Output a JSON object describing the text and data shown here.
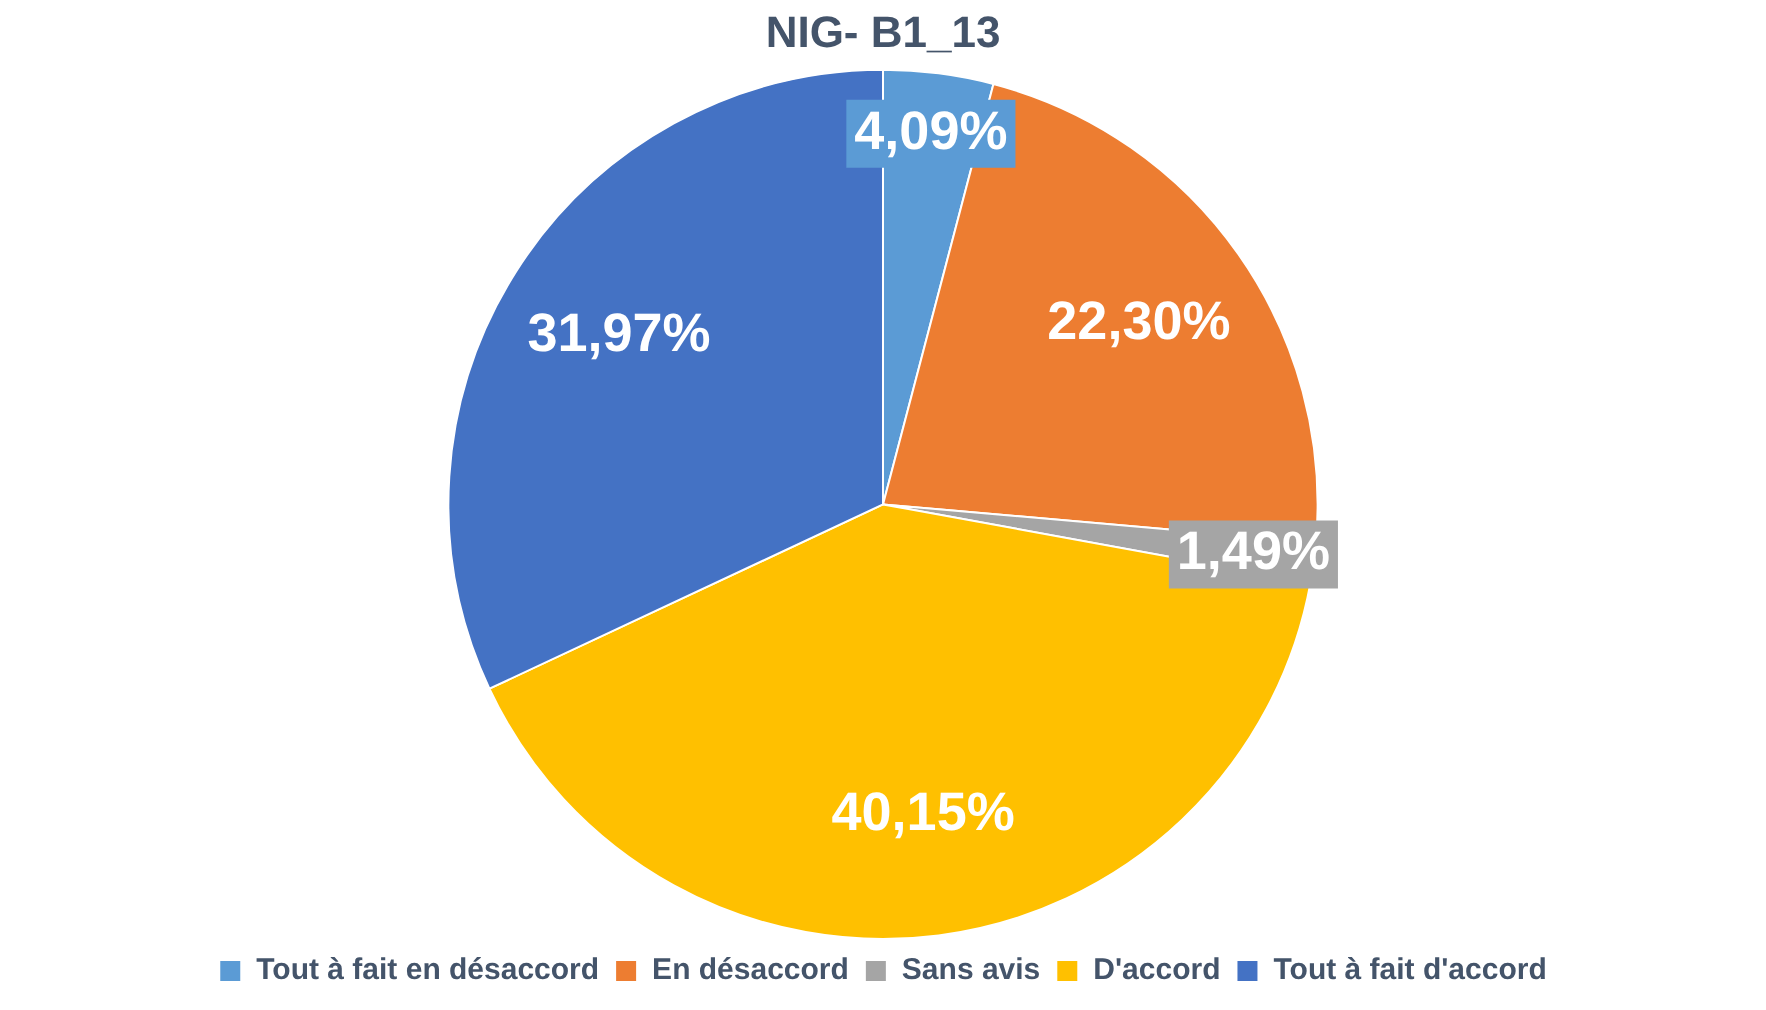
{
  "chart_data": {
    "type": "pie",
    "title": "NIG- B1_13",
    "categories": [
      "Tout à fait en désaccord",
      "En désaccord",
      "Sans avis",
      "D'accord",
      "Tout à fait d'accord"
    ],
    "values": [
      4.09,
      22.3,
      1.49,
      40.15,
      31.97
    ],
    "colors": [
      "#5b9bd5",
      "#ed7d31",
      "#a5a5a5",
      "#ffc000",
      "#4472c4"
    ],
    "value_labels": [
      "4,09%",
      "22,30%",
      "1,49%",
      "40,15%",
      "31,97%"
    ],
    "legend": "bottom"
  }
}
